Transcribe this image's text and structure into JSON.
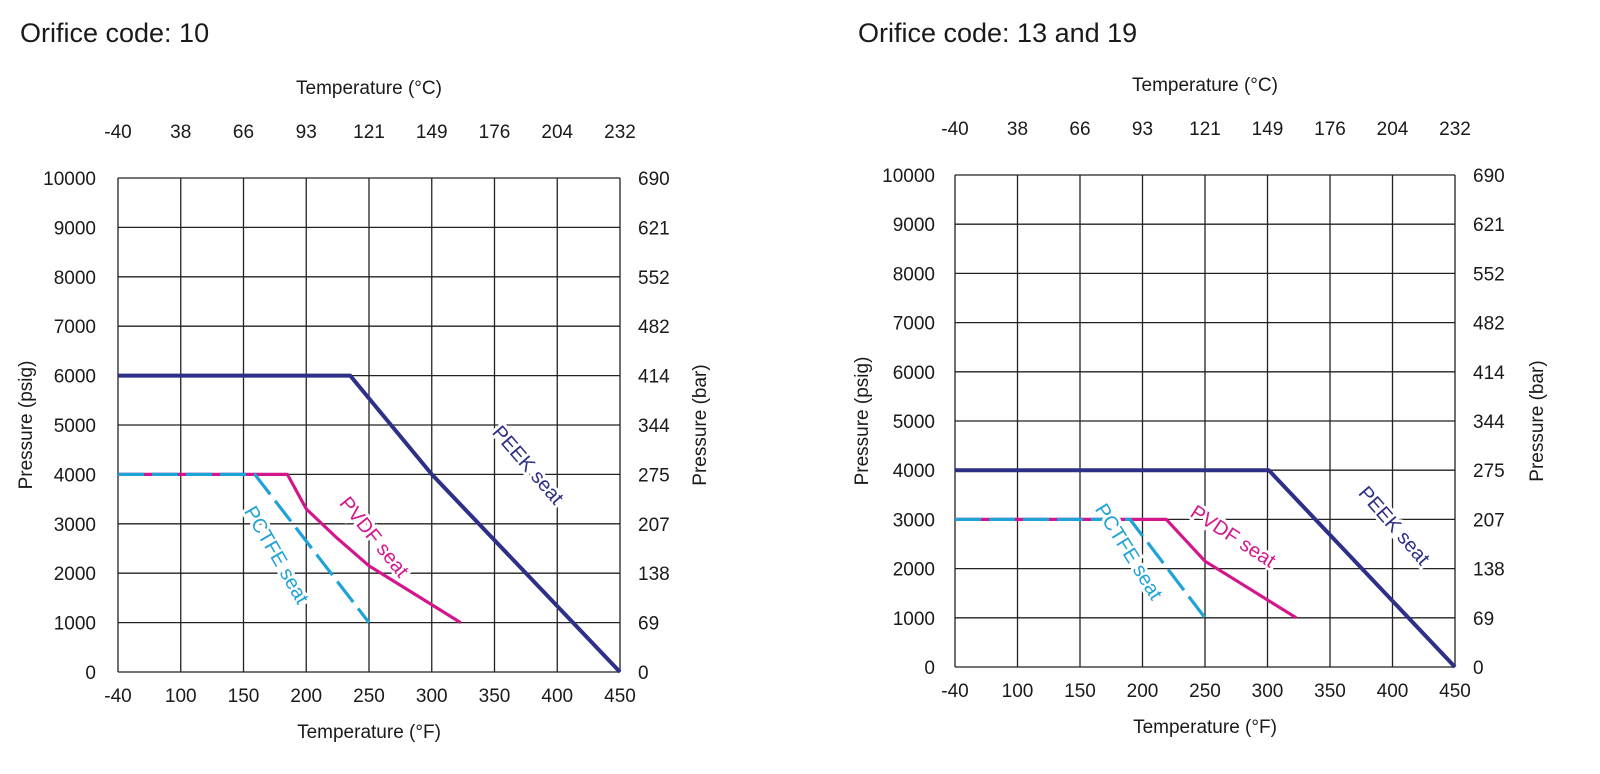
{
  "chart_data": [
    {
      "type": "line",
      "title": "Orifice code: 10",
      "xlabel": "Temperature (°F)",
      "x2label": "Temperature (°C)",
      "ylabel": "Pressure (psig)",
      "y2label": "Pressure (bar)",
      "xticks": [
        "-40",
        "100",
        "150",
        "200",
        "250",
        "300",
        "350",
        "400",
        "450"
      ],
      "x2ticks": [
        "-40",
        "38",
        "66",
        "93",
        "121",
        "149",
        "176",
        "204",
        "232"
      ],
      "yticks": [
        "0",
        "1000",
        "2000",
        "3000",
        "4000",
        "5000",
        "6000",
        "7000",
        "8000",
        "9000",
        "10000"
      ],
      "y2ticks": [
        "0",
        "69",
        "138",
        "207",
        "275",
        "344",
        "414",
        "482",
        "552",
        "621",
        "690"
      ],
      "ylim": [
        0,
        10000
      ],
      "grid": true,
      "series": [
        {
          "name": "PEEK seat",
          "color": "#2e2f86",
          "style": "solid",
          "points": [
            [
              -40,
              6000
            ],
            [
              235,
              6000
            ],
            [
              300,
              4000
            ],
            [
              450,
              0
            ]
          ]
        },
        {
          "name": "PVDF seat",
          "color": "#d4168c",
          "style": "solid",
          "points": [
            [
              -40,
              4000
            ],
            [
              185,
              4000
            ],
            [
              200,
              3300
            ],
            [
              225,
              2700
            ],
            [
              250,
              2150
            ],
            [
              285,
              1600
            ],
            [
              323,
              1000
            ]
          ]
        },
        {
          "name": "PCTFE seat",
          "color": "#1fa3d6",
          "style": "dashed",
          "points": [
            [
              -40,
              4000
            ],
            [
              159,
              4000
            ],
            [
              250,
              1000
            ]
          ]
        }
      ]
    },
    {
      "type": "line",
      "title": "Orifice code: 13 and 19",
      "xlabel": "Temperature (°F)",
      "x2label": "Temperature (°C)",
      "ylabel": "Pressure (psig)",
      "y2label": "Pressure (bar)",
      "xticks": [
        "-40",
        "100",
        "150",
        "200",
        "250",
        "300",
        "350",
        "400",
        "450"
      ],
      "x2ticks": [
        "-40",
        "38",
        "66",
        "93",
        "121",
        "149",
        "176",
        "204",
        "232"
      ],
      "yticks": [
        "0",
        "1000",
        "2000",
        "3000",
        "4000",
        "5000",
        "6000",
        "7000",
        "8000",
        "9000",
        "10000"
      ],
      "y2ticks": [
        "0",
        "69",
        "138",
        "207",
        "275",
        "344",
        "414",
        "482",
        "552",
        "621",
        "690"
      ],
      "ylim": [
        0,
        10000
      ],
      "grid": true,
      "series": [
        {
          "name": "PEEK seat",
          "color": "#2e2f86",
          "style": "solid",
          "points": [
            [
              -40,
              4000
            ],
            [
              301,
              4000
            ],
            [
              450,
              0
            ]
          ]
        },
        {
          "name": "PVDF seat",
          "color": "#d4168c",
          "style": "solid",
          "points": [
            [
              -40,
              3000
            ],
            [
              219,
              3000
            ],
            [
              250,
              2150
            ],
            [
              285,
              1600
            ],
            [
              323,
              1000
            ]
          ]
        },
        {
          "name": "PCTFE seat",
          "color": "#1fa3d6",
          "style": "dashed",
          "points": [
            [
              -40,
              3000
            ],
            [
              190,
              3000
            ],
            [
              250,
              1000
            ]
          ]
        }
      ]
    }
  ]
}
